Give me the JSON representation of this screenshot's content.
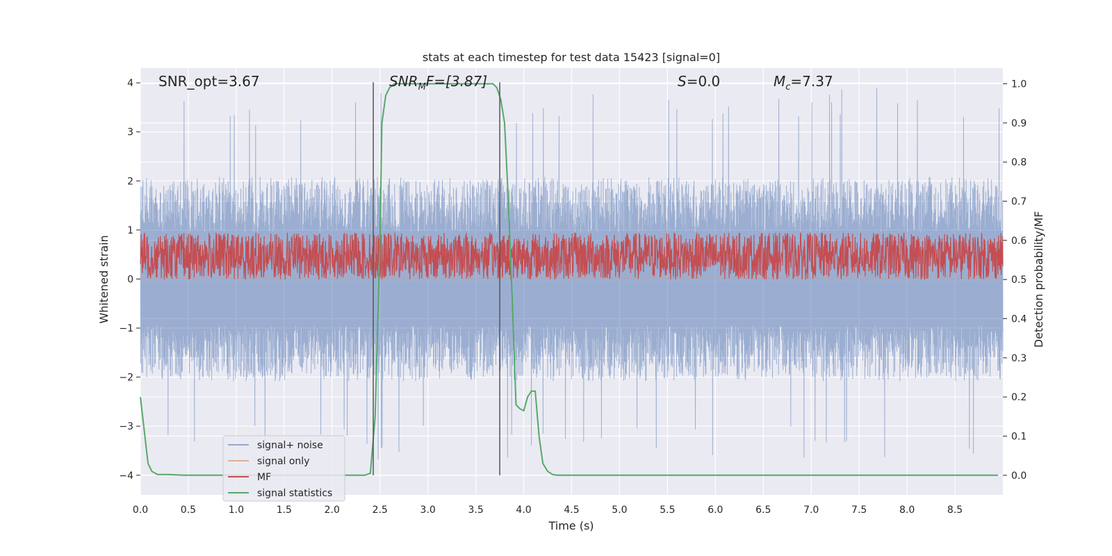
{
  "chart_data": {
    "type": "line",
    "title": "stats at each timestep for test data 15423 [signal=0]",
    "xlabel": "Time (s)",
    "ylabel_left": "Whitened strain",
    "ylabel_right": "Detection probability/MF",
    "xlim": [
      0.0,
      9.0
    ],
    "ylim_left": [
      -4.4,
      4.3
    ],
    "ylim_right": [
      -0.05,
      1.04
    ],
    "xticks": [
      "0.0",
      "0.5",
      "1.0",
      "1.5",
      "2.0",
      "2.5",
      "3.0",
      "3.5",
      "4.0",
      "4.5",
      "5.0",
      "5.5",
      "6.0",
      "6.5",
      "7.0",
      "7.5",
      "8.0",
      "8.5"
    ],
    "yticks_left": [
      "4",
      "3",
      "2",
      "1",
      "0",
      "−1",
      "−2",
      "−3",
      "−4"
    ],
    "yticks_right": [
      "1.0",
      "0.9",
      "0.8",
      "0.7",
      "0.6",
      "0.5",
      "0.4",
      "0.3",
      "0.2",
      "0.1",
      "0.0"
    ],
    "grid": true,
    "annotations": {
      "snr_opt": "SNR_opt=3.67",
      "snr_mf_sym": "SNR",
      "snr_mf_sub": "M",
      "snr_mf_rest": "F=[3.87]",
      "s_sym": "S",
      "s_rest": "=0.0",
      "mc_sym": "M",
      "mc_sub": "c",
      "mc_rest": "=7.37"
    },
    "vlines_x": [
      2.43,
      3.75
    ],
    "series": [
      {
        "name": "signal+ noise",
        "color": "#4c72b0",
        "kind": "noise",
        "typical_envelope": [
          -2.0,
          2.1
        ],
        "max": 3.9,
        "min": -3.7
      },
      {
        "name": "signal only",
        "color": "#dd8452",
        "kind": "flat",
        "value": 0.0
      },
      {
        "name": "MF",
        "color": "#c44e52",
        "kind": "mf",
        "range_right_axis": [
          0.5,
          0.62
        ]
      },
      {
        "name": "signal statistics",
        "color": "#55a868",
        "kind": "line",
        "x": [
          0.0,
          0.08,
          0.12,
          0.18,
          0.3,
          0.45,
          1.0,
          1.5,
          2.0,
          2.25,
          2.34,
          2.4,
          2.45,
          2.5,
          2.52,
          2.56,
          2.6,
          2.65,
          2.75,
          3.0,
          3.5,
          3.68,
          3.72,
          3.76,
          3.8,
          3.84,
          3.88,
          3.92,
          3.96,
          4.0,
          4.04,
          4.08,
          4.12,
          4.16,
          4.2,
          4.25,
          4.3,
          4.35,
          4.5,
          5.0,
          6.0,
          7.0,
          8.0,
          8.95
        ],
        "y": [
          0.2,
          0.03,
          0.01,
          0.002,
          0.002,
          0.0,
          0.0,
          0.0,
          0.0,
          0.0,
          0.0,
          0.005,
          0.15,
          0.6,
          0.9,
          0.97,
          0.99,
          1.0,
          1.0,
          1.0,
          1.0,
          1.0,
          0.99,
          0.96,
          0.9,
          0.7,
          0.45,
          0.18,
          0.17,
          0.165,
          0.2,
          0.215,
          0.215,
          0.1,
          0.03,
          0.01,
          0.002,
          0.0,
          0.0,
          0.0,
          0.0,
          0.0,
          0.0,
          0.0
        ]
      }
    ],
    "legend": {
      "placement": "lower-left",
      "entries": [
        "signal+ noise",
        "signal only",
        "MF",
        "signal statistics"
      ]
    }
  }
}
